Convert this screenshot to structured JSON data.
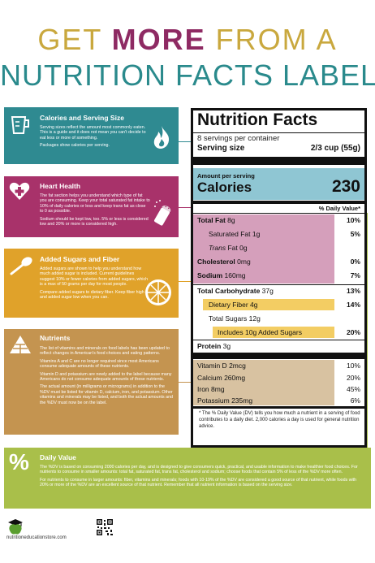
{
  "title": {
    "prefix": "GET ",
    "emphasis": "MORE",
    "suffix": " FROM A",
    "line2": "NUTRITION FACTS LABEL"
  },
  "colors": {
    "teal": "#2f8a91",
    "magenta": "#a8326a",
    "orange": "#e0a22a",
    "tan": "#c49450",
    "green": "#a9bf4a",
    "title_gold": "#c9a83e"
  },
  "sections": {
    "calories": {
      "icon": "flame-icon",
      "title": "Calories and Serving Size",
      "p1": "Serving sizes reflect the amount most commonly eaten. This is a guide and it does not mean you can't decide to eat less or more of something.",
      "p2": "Packages show calories per serving."
    },
    "heart": {
      "icon": "salt-shaker-icon",
      "title": "Heart Health",
      "p1": "The fat section helps you understand which type of fat you are consuming. Keep your total saturated fat intake to 10% of daily calories or less and keep trans fat as close to 0 as possible.",
      "p2": "Sodium should be kept low, too. 5% or less is considered low and 20% or more is considered high."
    },
    "sugars": {
      "icon": "orange-slice-icon",
      "title": "Added Sugars and Fiber",
      "p1": "Added sugars are shown to help you understand how much added sugar is included. Current guidelines suggest 10% or fewer calories from added sugars, which is a max of 50 grams per day for most people.",
      "p2": "Compare added sugars to dietary fiber. Keep fiber high and added sugar low when you can."
    },
    "nutrients": {
      "icon": "food-pyramid-icon",
      "title": "Nutrients",
      "p1": "The list of vitamins and minerals on food labels has been updated to reflect changes in American's food choices and eating patterns.",
      "p2": "Vitamins A and C are no longer required since most Americans consume adequate amounts of these nutrients.",
      "p3": "Vitamin D and potassium are newly added to the label because many Americans do not consume adequate amounts of these nutrients.",
      "p4": "The actual amount (in milligrams or micrograms) in addition to the %DV must be listed for vitamin D, calcium, iron, and potassium. Other vitamins and minerals may be listed, and both the actual amounts and the %DV must now be on the label."
    },
    "daily_value": {
      "icon": "percent-icon",
      "title": "Daily Value",
      "p1": "The %DV is based on consuming 2000 calories per day, and is designed to give consumers quick, practical, and usable information to make healthier food choices. For nutrients to consume in smaller amounts: total fat, saturated fat, trans fat, cholesterol and sodium; choose foods that contain 5% of less of the %DV more often.",
      "p2": "For nutrients to consume in larger amounts: fiber, vitamins and minerals; foods with 10-19% of the %DV are considered a good source of that nutrient, while foods with 20% or more of the %DV are an excellent source of that nutrient. Remember that all nutrient information is based on the serving size."
    }
  },
  "label": {
    "title": "Nutrition Facts",
    "servings": "8 servings per container",
    "serving_size_label": "Serving size",
    "serving_size_value": "2/3 cup (55g)",
    "amount_per_serving": "Amount per serving",
    "calories_label": "Calories",
    "calories_value": "230",
    "dv_header": "% Daily Value*",
    "rows": {
      "total_fat": {
        "name": "Total Fat",
        "amount": "8g",
        "pct": "10%"
      },
      "sat_fat": {
        "name": "Saturated Fat",
        "amount": "1g",
        "pct": "5%"
      },
      "trans_fat": {
        "name": "Trans",
        "amount": "Fat 0g",
        "pct": ""
      },
      "cholesterol": {
        "name": "Cholesterol",
        "amount": "0mg",
        "pct": "0%"
      },
      "sodium": {
        "name": "Sodium",
        "amount": "160mg",
        "pct": "7%"
      },
      "total_carb": {
        "name": "Total Carbohydrate",
        "amount": "37g",
        "pct": "13%"
      },
      "fiber": {
        "name": "Dietary Fiber",
        "amount": "4g",
        "pct": "14%"
      },
      "total_sugars": {
        "name": "Total Sugars",
        "amount": "12g",
        "pct": ""
      },
      "added_sugars": {
        "name": "Includes 10g Added Sugars",
        "amount": "",
        "pct": "20%"
      },
      "protein": {
        "name": "Protein",
        "amount": "3g",
        "pct": ""
      },
      "vitamin_d": {
        "name": "Vitamin D",
        "amount": "2mcg",
        "pct": "10%"
      },
      "calcium": {
        "name": "Calcium",
        "amount": "260mg",
        "pct": "20%"
      },
      "iron": {
        "name": "Iron",
        "amount": "8mg",
        "pct": "45%"
      },
      "potassium": {
        "name": "Potassium",
        "amount": "235mg",
        "pct": "6%"
      }
    },
    "footnote": "* The % Daily Value (DV) tells you how much a nutrient in a serving of food contributes to a daily diet. 2,000 calories a day is used for general nutrition advice."
  },
  "footer": {
    "site": "nutritioneducationstore.com",
    "logo_icon": "apple-graduation-cap-icon",
    "qr_icon": "qr-code-icon"
  }
}
